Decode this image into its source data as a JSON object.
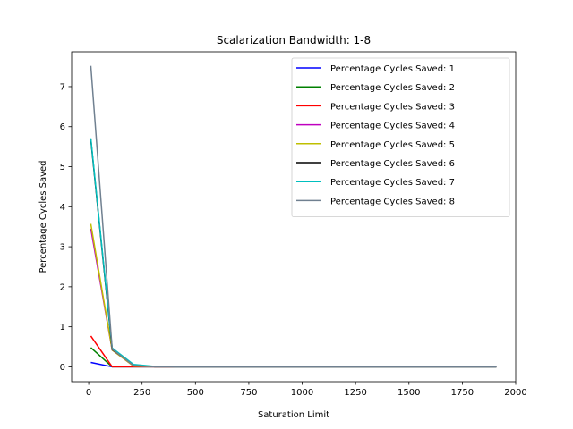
{
  "chart_data": {
    "type": "line",
    "title": "Scalarization Bandwidth: 1-8",
    "xlabel": "Saturation Limit",
    "ylabel": "Percentage Cycles Saved",
    "xlim": [
      -80,
      2000
    ],
    "ylim": [
      -0.37,
      7.87
    ],
    "xticks": [
      0,
      250,
      500,
      750,
      1000,
      1250,
      1500,
      1750,
      2000
    ],
    "yticks": [
      0,
      1,
      2,
      3,
      4,
      5,
      6,
      7
    ],
    "grid": false,
    "legend_position": "top-right",
    "x": [
      10,
      110,
      210,
      310,
      410,
      510,
      610,
      710,
      810,
      910,
      1010,
      1110,
      1210,
      1310,
      1410,
      1510,
      1610,
      1710,
      1810,
      1910
    ],
    "series": [
      {
        "name": "Percentage Cycles Saved: 1",
        "color": "#0000ff",
        "values": [
          0.11,
          0.0,
          0.0,
          0.0,
          0.0,
          0.0,
          0.0,
          0.0,
          0.0,
          0.0,
          0.0,
          0.0,
          0.0,
          0.0,
          0.0,
          0.0,
          0.0,
          0.0,
          0.0,
          0.0
        ]
      },
      {
        "name": "Percentage Cycles Saved: 2",
        "color": "#008000",
        "values": [
          0.48,
          0.0,
          0.0,
          0.0,
          0.0,
          0.0,
          0.0,
          0.0,
          0.0,
          0.0,
          0.0,
          0.0,
          0.0,
          0.0,
          0.0,
          0.0,
          0.0,
          0.0,
          0.0,
          0.0
        ]
      },
      {
        "name": "Percentage Cycles Saved: 3",
        "color": "#ff0000",
        "values": [
          0.77,
          0.0,
          0.0,
          0.0,
          0.0,
          0.0,
          0.0,
          0.0,
          0.0,
          0.0,
          0.0,
          0.0,
          0.0,
          0.0,
          0.0,
          0.0,
          0.0,
          0.0,
          0.0,
          0.0
        ]
      },
      {
        "name": "Percentage Cycles Saved: 4",
        "color": "#bf00bf",
        "values": [
          3.45,
          0.42,
          0.02,
          0.0,
          0.0,
          0.0,
          0.0,
          0.0,
          0.0,
          0.0,
          0.0,
          0.0,
          0.0,
          0.0,
          0.0,
          0.0,
          0.0,
          0.0,
          0.0,
          0.0
        ]
      },
      {
        "name": "Percentage Cycles Saved: 5",
        "color": "#bfbf00",
        "values": [
          3.57,
          0.42,
          0.02,
          0.0,
          0.0,
          0.0,
          0.0,
          0.0,
          0.0,
          0.0,
          0.0,
          0.0,
          0.0,
          0.0,
          0.0,
          0.0,
          0.0,
          0.0,
          0.0,
          0.0
        ]
      },
      {
        "name": "Percentage Cycles Saved: 6",
        "color": "#000000",
        "values": [
          5.68,
          0.43,
          0.05,
          0.0,
          0.0,
          0.0,
          0.0,
          0.0,
          0.0,
          0.0,
          0.0,
          0.0,
          0.0,
          0.0,
          0.0,
          0.0,
          0.0,
          0.0,
          0.0,
          0.0
        ]
      },
      {
        "name": "Percentage Cycles Saved: 7",
        "color": "#00bfbf",
        "values": [
          5.71,
          0.47,
          0.06,
          0.01,
          0.0,
          0.0,
          0.0,
          0.0,
          0.0,
          0.0,
          0.0,
          0.0,
          0.0,
          0.0,
          0.0,
          0.0,
          0.0,
          0.0,
          0.0,
          0.0
        ]
      },
      {
        "name": "Percentage Cycles Saved: 8",
        "color": "#708090",
        "values": [
          7.52,
          0.44,
          0.03,
          0.0,
          0.0,
          0.0,
          0.0,
          0.0,
          0.0,
          0.0,
          0.0,
          0.0,
          0.0,
          0.0,
          0.0,
          0.0,
          0.0,
          0.0,
          0.0,
          0.0
        ]
      }
    ]
  }
}
